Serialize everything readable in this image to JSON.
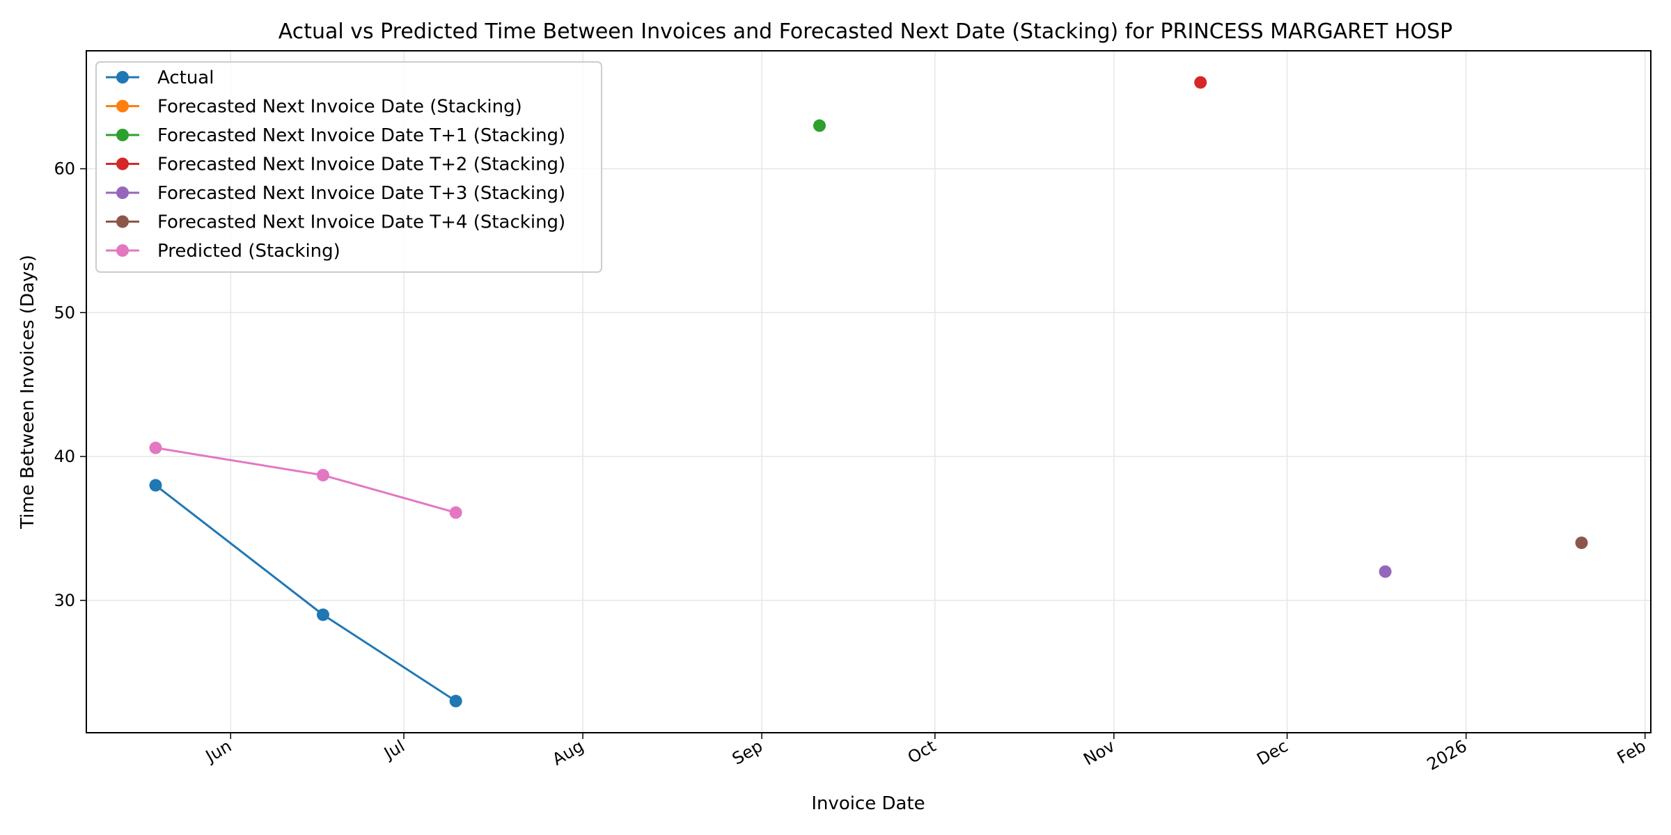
{
  "chart_data": {
    "type": "line",
    "title": "Actual vs Predicted Time Between Invoices and Forecasted Next Date (Stacking) for PRINCESS MARGARET HOSP",
    "xlabel": "Invoice Date",
    "ylabel": "Time Between Invoices (Days)",
    "x_type": "date",
    "xlim": [
      "2025-05-07",
      "2026-02-02"
    ],
    "ylim": [
      20.8,
      68.2
    ],
    "x_ticks": [
      {
        "date": "2025-06-01",
        "label": "Jun"
      },
      {
        "date": "2025-07-01",
        "label": "Jul"
      },
      {
        "date": "2025-08-01",
        "label": "Aug"
      },
      {
        "date": "2025-09-01",
        "label": "Sep"
      },
      {
        "date": "2025-10-01",
        "label": "Oct"
      },
      {
        "date": "2025-11-01",
        "label": "Nov"
      },
      {
        "date": "2025-12-01",
        "label": "Dec"
      },
      {
        "date": "2026-01-01",
        "label": "2026"
      },
      {
        "date": "2026-02-01",
        "label": "Feb"
      }
    ],
    "y_ticks": [
      30,
      40,
      50,
      60
    ],
    "grid": true,
    "legend_position": "top-left",
    "series": [
      {
        "name": "Actual",
        "color": "#1f77b4",
        "x": [
          "2025-05-19",
          "2025-06-17",
          "2025-07-10"
        ],
        "y": [
          38,
          29,
          23
        ]
      },
      {
        "name": "Forecasted Next Invoice Date (Stacking)",
        "color": "#ff7f0e",
        "x": [],
        "y": []
      },
      {
        "name": "Forecasted Next Invoice Date T+1 (Stacking)",
        "color": "#2ca02c",
        "x": [
          "2025-09-11"
        ],
        "y": [
          63
        ]
      },
      {
        "name": "Forecasted Next Invoice Date T+2 (Stacking)",
        "color": "#d62728",
        "x": [
          "2025-11-16"
        ],
        "y": [
          66
        ]
      },
      {
        "name": "Forecasted Next Invoice Date T+3 (Stacking)",
        "color": "#9467bd",
        "x": [
          "2025-12-18"
        ],
        "y": [
          32
        ]
      },
      {
        "name": "Forecasted Next Invoice Date T+4 (Stacking)",
        "color": "#8c564b",
        "x": [
          "2026-01-21"
        ],
        "y": [
          34
        ]
      },
      {
        "name": "Predicted (Stacking)",
        "color": "#e377c2",
        "x": [
          "2025-05-19",
          "2025-06-17",
          "2025-07-10"
        ],
        "y": [
          40.6,
          38.7,
          36.1
        ]
      }
    ]
  }
}
